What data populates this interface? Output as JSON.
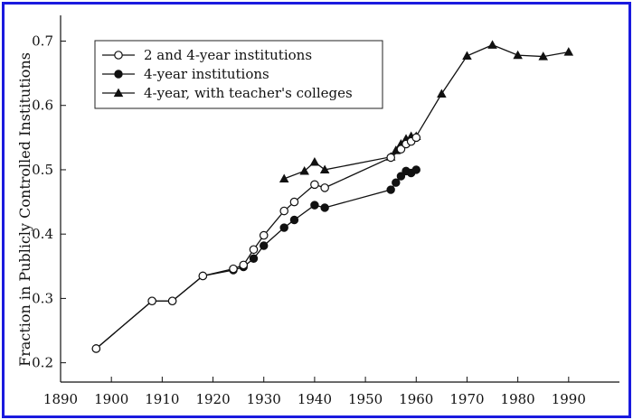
{
  "chart_data": {
    "type": "line",
    "title": "",
    "xlabel": "",
    "ylabel": "Fraction in Publicly Controlled Institutions",
    "xlim": [
      1890,
      2000
    ],
    "ylim": [
      0.17,
      0.74
    ],
    "xticks": [
      1890,
      1900,
      1910,
      1920,
      1930,
      1940,
      1950,
      1960,
      1970,
      1980,
      1990
    ],
    "yticks": [
      0.2,
      0.3,
      0.4,
      0.5,
      0.6,
      0.7
    ],
    "grid": false,
    "legend_position": "top-left",
    "series": [
      {
        "name": "2 and 4-year institutions",
        "marker": "open-circle",
        "x": [
          1897,
          1908,
          1912,
          1918,
          1924,
          1926,
          1928,
          1930,
          1934,
          1936,
          1940,
          1942,
          1955,
          1957,
          1958,
          1959,
          1960
        ],
        "y": [
          0.222,
          0.296,
          0.296,
          0.335,
          0.346,
          0.352,
          0.376,
          0.398,
          0.436,
          0.45,
          0.477,
          0.472,
          0.519,
          0.532,
          0.54,
          0.544,
          0.55
        ]
      },
      {
        "name": "4-year institutions",
        "marker": "filled-circle",
        "x": [
          1897,
          1908,
          1912,
          1918,
          1924,
          1926,
          1928,
          1930,
          1934,
          1936,
          1940,
          1942,
          1955,
          1956,
          1957,
          1958,
          1959,
          1960
        ],
        "y": [
          0.222,
          0.296,
          0.296,
          0.335,
          0.344,
          0.349,
          0.362,
          0.382,
          0.41,
          0.422,
          0.445,
          0.441,
          0.469,
          0.48,
          0.49,
          0.498,
          0.495,
          0.5
        ]
      },
      {
        "name": "4-year, with teacher's colleges",
        "marker": "filled-triangle",
        "x": [
          1934,
          1938,
          1940,
          1942,
          1955,
          1956,
          1957,
          1958,
          1959,
          1960,
          1965,
          1970,
          1975,
          1980,
          1985,
          1990
        ],
        "y": [
          0.486,
          0.498,
          0.512,
          0.5,
          0.52,
          0.53,
          0.54,
          0.548,
          0.552,
          0.552,
          0.618,
          0.677,
          0.694,
          0.678,
          0.676,
          0.683
        ]
      }
    ]
  }
}
